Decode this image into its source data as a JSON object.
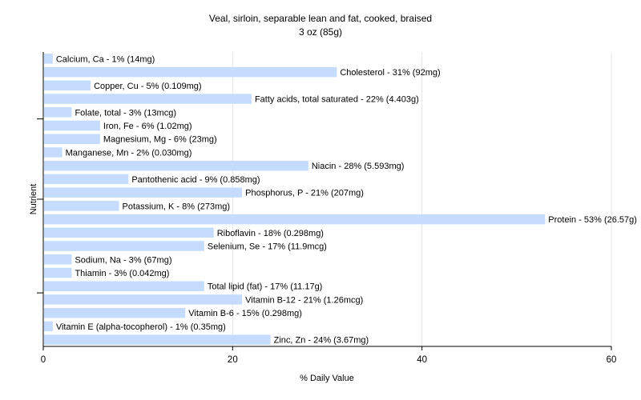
{
  "chart_data": {
    "type": "bar",
    "orientation": "horizontal",
    "title": "Veal, sirloin, separable lean and fat, cooked, braised",
    "subtitle": "3 oz (85g)",
    "xlabel": "% Daily Value",
    "ylabel": "Nutrient",
    "xlim": [
      0,
      60
    ],
    "xticks": [
      0,
      20,
      40,
      60
    ],
    "grid": true,
    "bar_color": "#c6dcff",
    "categories": [
      "Calcium, Ca",
      "Cholesterol",
      "Copper, Cu",
      "Fatty acids, total saturated",
      "Folate, total",
      "Iron, Fe",
      "Magnesium, Mg",
      "Manganese, Mn",
      "Niacin",
      "Pantothenic acid",
      "Phosphorus, P",
      "Potassium, K",
      "Protein",
      "Riboflavin",
      "Selenium, Se",
      "Sodium, Na",
      "Thiamin",
      "Total lipid (fat)",
      "Vitamin B-12",
      "Vitamin B-6",
      "Vitamin E (alpha-tocopherol)",
      "Zinc, Zn"
    ],
    "values": [
      1,
      31,
      5,
      22,
      3,
      6,
      6,
      2,
      28,
      9,
      21,
      8,
      53,
      18,
      17,
      3,
      3,
      17,
      21,
      15,
      1,
      24
    ],
    "labels": [
      "Calcium, Ca - 1% (14mg)",
      "Cholesterol - 31% (92mg)",
      "Copper, Cu - 5% (0.109mg)",
      "Fatty acids, total saturated - 22% (4.403g)",
      "Folate, total - 3% (13mcg)",
      "Iron, Fe - 6% (1.02mg)",
      "Magnesium, Mg - 6% (23mg)",
      "Manganese, Mn - 2% (0.030mg)",
      "Niacin - 28% (5.593mg)",
      "Pantothenic acid - 9% (0.858mg)",
      "Phosphorus, P - 21% (207mg)",
      "Potassium, K - 8% (273mg)",
      "Protein - 53% (26.57g)",
      "Riboflavin - 18% (0.298mg)",
      "Selenium, Se - 17% (11.9mcg)",
      "Sodium, Na - 3% (67mg)",
      "Thiamin - 3% (0.042mg)",
      "Total lipid (fat) - 17% (11.17g)",
      "Vitamin B-12 - 21% (1.26mcg)",
      "Vitamin B-6 - 15% (0.298mg)",
      "Vitamin E (alpha-tocopherol) - 1% (0.35mg)",
      "Zinc, Zn - 24% (3.67mg)"
    ]
  }
}
